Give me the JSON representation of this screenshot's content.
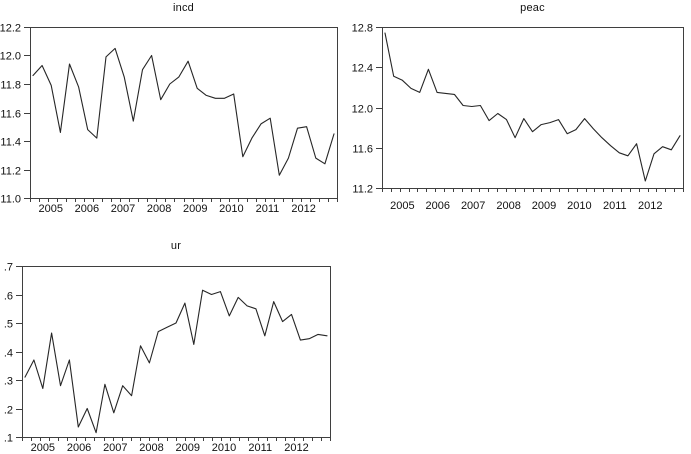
{
  "page": {
    "background": "#ffffff"
  },
  "style": {
    "line_color": "#262626",
    "axis_color": "#3f3f3f",
    "text_color": "#111111"
  },
  "chart_data": [
    {
      "id": "incd",
      "title": "incd",
      "type": "line",
      "frequency": "quarterly",
      "legend": "none",
      "grid": "off",
      "x_tick_labels": [
        "2005",
        "2006",
        "2007",
        "2008",
        "2009",
        "2010",
        "2011",
        "2012"
      ],
      "ylim": [
        11.0,
        12.2
      ],
      "y_ticks": [
        {
          "value": 12.2,
          "label": "12.2"
        },
        {
          "value": 12.0,
          "label": "12.0"
        },
        {
          "value": 11.8,
          "label": "11.8"
        },
        {
          "value": 11.6,
          "label": "11.6"
        },
        {
          "value": 11.4,
          "label": "11.4"
        },
        {
          "value": 11.2,
          "label": "11.2"
        },
        {
          "value": 11.0,
          "label": "11.0"
        }
      ],
      "values": [
        11.86,
        11.93,
        11.79,
        11.46,
        11.94,
        11.78,
        11.48,
        11.42,
        11.99,
        12.05,
        11.85,
        11.54,
        11.9,
        12.0,
        11.69,
        11.8,
        11.85,
        11.96,
        11.77,
        11.72,
        11.7,
        11.7,
        11.73,
        11.29,
        11.42,
        11.52,
        11.56,
        11.16,
        11.28,
        11.49,
        11.5,
        11.28,
        11.24,
        11.45
      ]
    },
    {
      "id": "peac",
      "title": "peac",
      "type": "line",
      "frequency": "quarterly",
      "legend": "none",
      "grid": "off",
      "x_tick_labels": [
        "2005",
        "2006",
        "2007",
        "2008",
        "2009",
        "2010",
        "2011",
        "2012"
      ],
      "ylim": [
        11.2,
        12.8
      ],
      "y_ticks": [
        {
          "value": 12.8,
          "label": "12.8"
        },
        {
          "value": 12.4,
          "label": "12.4"
        },
        {
          "value": 12.0,
          "label": "12.0"
        },
        {
          "value": 11.6,
          "label": "11.6"
        },
        {
          "value": 11.2,
          "label": "11.2"
        }
      ],
      "values": [
        12.74,
        12.31,
        12.27,
        12.19,
        12.15,
        12.38,
        12.15,
        12.14,
        12.13,
        12.02,
        12.01,
        12.02,
        11.87,
        11.94,
        11.88,
        11.7,
        11.89,
        11.76,
        11.83,
        11.85,
        11.88,
        11.74,
        11.78,
        11.89,
        11.79,
        11.7,
        11.62,
        11.55,
        11.52,
        11.64,
        11.27,
        11.54,
        11.61,
        11.58,
        11.72
      ]
    },
    {
      "id": "ur",
      "title": "ur",
      "type": "line",
      "frequency": "quarterly",
      "legend": "none",
      "grid": "off",
      "x_tick_labels": [
        "2005",
        "2006",
        "2007",
        "2008",
        "2009",
        "2010",
        "2011",
        "2012"
      ],
      "ylim": [
        0.1,
        0.7
      ],
      "y_ticks": [
        {
          "value": 0.7,
          "label": ".7"
        },
        {
          "value": 0.6,
          "label": ".6"
        },
        {
          "value": 0.5,
          "label": ".5"
        },
        {
          "value": 0.4,
          "label": ".4"
        },
        {
          "value": 0.3,
          "label": ".3"
        },
        {
          "value": 0.2,
          "label": ".2"
        },
        {
          "value": 0.1,
          "label": ".1"
        }
      ],
      "values": [
        0.31,
        0.37,
        0.27,
        0.465,
        0.28,
        0.37,
        0.135,
        0.2,
        0.115,
        0.285,
        0.185,
        0.28,
        0.245,
        0.42,
        0.36,
        0.47,
        0.485,
        0.5,
        0.57,
        0.425,
        0.615,
        0.6,
        0.61,
        0.525,
        0.59,
        0.56,
        0.55,
        0.455,
        0.575,
        0.505,
        0.53,
        0.44,
        0.445,
        0.46,
        0.455
      ]
    }
  ]
}
